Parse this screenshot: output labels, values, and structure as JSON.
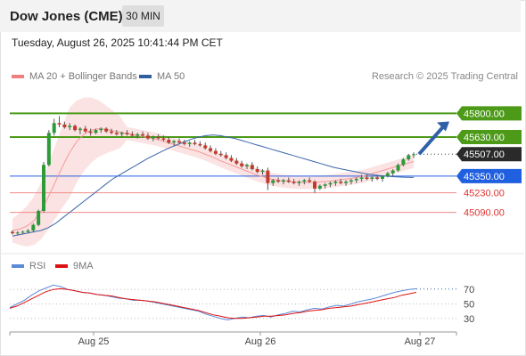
{
  "header": {
    "title": "Dow Jones (CME)",
    "timeframe": "30 MIN"
  },
  "timestamp": "Tuesday, August 26, 2025 10:41:44 PM CET",
  "legend": {
    "ma20": {
      "label": "MA 20 + Bollinger Bands",
      "color": "#f08080"
    },
    "ma50": {
      "label": "MA 50",
      "color": "#2f5f9f"
    }
  },
  "credit": "Research © 2025 Trading Central",
  "rsi_legend": {
    "rsi": {
      "label": "RSI",
      "color": "#5b8ad8"
    },
    "ma9": {
      "label": "9MA",
      "color": "#dd1111"
    }
  },
  "chart_data": [
    {
      "type": "candlestick",
      "x_tick_labels": [
        "Aug 25",
        "Aug 26",
        "Aug 27"
      ],
      "ylim": [
        44800,
        46000
      ],
      "levels": [
        {
          "label": "45800.00",
          "value": 45800,
          "kind": "resistance",
          "color": "#4c9a18"
        },
        {
          "label": "45630.00",
          "value": 45630,
          "kind": "resistance",
          "color": "#4c9a18"
        },
        {
          "label": "45507.00",
          "value": 45507,
          "kind": "last-price",
          "color": "#333333"
        },
        {
          "label": "45350.00",
          "value": 45350,
          "kind": "pivot",
          "color": "#1f5fe0"
        },
        {
          "label": "45230.00",
          "value": 45230,
          "kind": "support",
          "color": "#e03030"
        },
        {
          "label": "45090.00",
          "value": 45090,
          "kind": "support",
          "color": "#e03030"
        }
      ],
      "candles": [
        {
          "o": 44950,
          "h": 44960,
          "l": 44930,
          "c": 44940
        },
        {
          "o": 44940,
          "h": 44955,
          "l": 44925,
          "c": 44945
        },
        {
          "o": 44945,
          "h": 44960,
          "l": 44935,
          "c": 44950
        },
        {
          "o": 44950,
          "h": 44970,
          "l": 44940,
          "c": 44960
        },
        {
          "o": 44960,
          "h": 45010,
          "l": 44950,
          "c": 45000
        },
        {
          "o": 45000,
          "h": 45110,
          "l": 44990,
          "c": 45100
        },
        {
          "o": 45100,
          "h": 45450,
          "l": 45090,
          "c": 45430
        },
        {
          "o": 45430,
          "h": 45680,
          "l": 45420,
          "c": 45660
        },
        {
          "o": 45660,
          "h": 45760,
          "l": 45640,
          "c": 45730
        },
        {
          "o": 45730,
          "h": 45780,
          "l": 45700,
          "c": 45720
        },
        {
          "o": 45720,
          "h": 45740,
          "l": 45690,
          "c": 45700
        },
        {
          "o": 45700,
          "h": 45730,
          "l": 45680,
          "c": 45710
        },
        {
          "o": 45710,
          "h": 45720,
          "l": 45670,
          "c": 45680
        },
        {
          "o": 45680,
          "h": 45700,
          "l": 45650,
          "c": 45690
        },
        {
          "o": 45690,
          "h": 45710,
          "l": 45660,
          "c": 45670
        },
        {
          "o": 45670,
          "h": 45690,
          "l": 45640,
          "c": 45660
        },
        {
          "o": 45660,
          "h": 45690,
          "l": 45650,
          "c": 45680
        },
        {
          "o": 45680,
          "h": 45700,
          "l": 45660,
          "c": 45690
        },
        {
          "o": 45690,
          "h": 45700,
          "l": 45660,
          "c": 45670
        },
        {
          "o": 45670,
          "h": 45690,
          "l": 45650,
          "c": 45660
        },
        {
          "o": 45660,
          "h": 45680,
          "l": 45640,
          "c": 45650
        },
        {
          "o": 45650,
          "h": 45670,
          "l": 45630,
          "c": 45660
        },
        {
          "o": 45660,
          "h": 45680,
          "l": 45640,
          "c": 45650
        },
        {
          "o": 45650,
          "h": 45670,
          "l": 45630,
          "c": 45640
        },
        {
          "o": 45640,
          "h": 45660,
          "l": 45620,
          "c": 45650
        },
        {
          "o": 45650,
          "h": 45670,
          "l": 45630,
          "c": 45640
        },
        {
          "o": 45640,
          "h": 45660,
          "l": 45610,
          "c": 45620
        },
        {
          "o": 45620,
          "h": 45640,
          "l": 45600,
          "c": 45630
        },
        {
          "o": 45630,
          "h": 45650,
          "l": 45610,
          "c": 45620
        },
        {
          "o": 45620,
          "h": 45640,
          "l": 45600,
          "c": 45610
        },
        {
          "o": 45610,
          "h": 45630,
          "l": 45580,
          "c": 45590
        },
        {
          "o": 45590,
          "h": 45610,
          "l": 45570,
          "c": 45600
        },
        {
          "o": 45600,
          "h": 45620,
          "l": 45580,
          "c": 45590
        },
        {
          "o": 45590,
          "h": 45610,
          "l": 45570,
          "c": 45580
        },
        {
          "o": 45580,
          "h": 45600,
          "l": 45560,
          "c": 45590
        },
        {
          "o": 45590,
          "h": 45610,
          "l": 45570,
          "c": 45580
        },
        {
          "o": 45580,
          "h": 45600,
          "l": 45560,
          "c": 45570
        },
        {
          "o": 45570,
          "h": 45590,
          "l": 45540,
          "c": 45550
        },
        {
          "o": 45550,
          "h": 45570,
          "l": 45520,
          "c": 45530
        },
        {
          "o": 45530,
          "h": 45550,
          "l": 45500,
          "c": 45510
        },
        {
          "o": 45510,
          "h": 45530,
          "l": 45490,
          "c": 45500
        },
        {
          "o": 45500,
          "h": 45520,
          "l": 45470,
          "c": 45480
        },
        {
          "o": 45480,
          "h": 45500,
          "l": 45450,
          "c": 45460
        },
        {
          "o": 45460,
          "h": 45480,
          "l": 45430,
          "c": 45440
        },
        {
          "o": 45440,
          "h": 45460,
          "l": 45410,
          "c": 45420
        },
        {
          "o": 45420,
          "h": 45440,
          "l": 45400,
          "c": 45430
        },
        {
          "o": 45430,
          "h": 45450,
          "l": 45390,
          "c": 45400
        },
        {
          "o": 45400,
          "h": 45420,
          "l": 45370,
          "c": 45380
        },
        {
          "o": 45380,
          "h": 45400,
          "l": 45360,
          "c": 45390
        },
        {
          "o": 45390,
          "h": 45410,
          "l": 45250,
          "c": 45300
        },
        {
          "o": 45300,
          "h": 45330,
          "l": 45280,
          "c": 45320
        },
        {
          "o": 45320,
          "h": 45340,
          "l": 45300,
          "c": 45310
        },
        {
          "o": 45310,
          "h": 45330,
          "l": 45290,
          "c": 45320
        },
        {
          "o": 45320,
          "h": 45340,
          "l": 45300,
          "c": 45310
        },
        {
          "o": 45310,
          "h": 45330,
          "l": 45290,
          "c": 45300
        },
        {
          "o": 45300,
          "h": 45320,
          "l": 45280,
          "c": 45310
        },
        {
          "o": 45310,
          "h": 45330,
          "l": 45290,
          "c": 45320
        },
        {
          "o": 45320,
          "h": 45340,
          "l": 45300,
          "c": 45310
        },
        {
          "o": 45310,
          "h": 45320,
          "l": 45230,
          "c": 45260
        },
        {
          "o": 45260,
          "h": 45290,
          "l": 45250,
          "c": 45280
        },
        {
          "o": 45280,
          "h": 45300,
          "l": 45260,
          "c": 45290
        },
        {
          "o": 45290,
          "h": 45310,
          "l": 45270,
          "c": 45300
        },
        {
          "o": 45300,
          "h": 45320,
          "l": 45280,
          "c": 45310
        },
        {
          "o": 45310,
          "h": 45330,
          "l": 45290,
          "c": 45300
        },
        {
          "o": 45300,
          "h": 45320,
          "l": 45280,
          "c": 45310
        },
        {
          "o": 45310,
          "h": 45330,
          "l": 45290,
          "c": 45320
        },
        {
          "o": 45320,
          "h": 45340,
          "l": 45300,
          "c": 45330
        },
        {
          "o": 45330,
          "h": 45360,
          "l": 45310,
          "c": 45340
        },
        {
          "o": 45340,
          "h": 45360,
          "l": 45320,
          "c": 45330
        },
        {
          "o": 45330,
          "h": 45350,
          "l": 45310,
          "c": 45340
        },
        {
          "o": 45340,
          "h": 45360,
          "l": 45320,
          "c": 45330
        },
        {
          "o": 45330,
          "h": 45350,
          "l": 45310,
          "c": 45350
        },
        {
          "o": 45350,
          "h": 45380,
          "l": 45340,
          "c": 45370
        },
        {
          "o": 45370,
          "h": 45400,
          "l": 45350,
          "c": 45390
        },
        {
          "o": 45390,
          "h": 45440,
          "l": 45380,
          "c": 45430
        },
        {
          "o": 45430,
          "h": 45480,
          "l": 45420,
          "c": 45470
        },
        {
          "o": 45470,
          "h": 45510,
          "l": 45460,
          "c": 45500
        },
        {
          "o": 45500,
          "h": 45520,
          "l": 45480,
          "c": 45507
        }
      ],
      "ma50": [
        44920,
        44930,
        44940,
        44950,
        44960,
        44980,
        45010,
        45050,
        45090,
        45130,
        45170,
        45210,
        45250,
        45290,
        45330,
        45360,
        45390,
        45420,
        45450,
        45480,
        45505,
        45530,
        45555,
        45575,
        45595,
        45615,
        45630,
        45640,
        45645,
        45640,
        45630,
        45620,
        45605,
        45590,
        45575,
        45560,
        45545,
        45530,
        45515,
        45500,
        45485,
        45470,
        45455,
        45440,
        45425,
        45410,
        45400,
        45390,
        45380,
        45370,
        45362,
        45355,
        45350,
        45346,
        45343,
        45341,
        45340
      ],
      "ma20": [
        44960,
        44970,
        44990,
        45030,
        45100,
        45200,
        45310,
        45420,
        45520,
        45600,
        45650,
        45680,
        45690,
        45685,
        45675,
        45665,
        45655,
        45645,
        45635,
        45625,
        45615,
        45600,
        45585,
        45570,
        45555,
        45540,
        45525,
        45505,
        45485,
        45460,
        45440,
        45420,
        45400,
        45380,
        45360,
        45345,
        45330,
        45320,
        45312,
        45308,
        45305,
        45304,
        45305,
        45308,
        45312,
        45318,
        45325,
        45332,
        45340,
        45350,
        45365,
        45380,
        45395,
        45410,
        45425,
        45440,
        45455
      ],
      "forecast_arrow": {
        "from": 45507,
        "to": 45780
      }
    },
    {
      "type": "line",
      "name": "RSI panel",
      "ylim": [
        15,
        85
      ],
      "y_tick_labels": [
        "70",
        "50",
        "30"
      ],
      "y_ticks": [
        70,
        50,
        30
      ],
      "series": [
        {
          "name": "RSI",
          "values": [
            45,
            50,
            55,
            62,
            68,
            72,
            76,
            74,
            70,
            68,
            66,
            65,
            63,
            62,
            60,
            58,
            57,
            55,
            55,
            54,
            52,
            50,
            48,
            46,
            44,
            42,
            40,
            36,
            33,
            30,
            28,
            30,
            32,
            31,
            33,
            34,
            32,
            35,
            37,
            40,
            39,
            42,
            44,
            43,
            46,
            48,
            47,
            50,
            53,
            55,
            57,
            60,
            63,
            66,
            68,
            70,
            71
          ]
        },
        {
          "name": "9MA",
          "values": [
            44,
            47,
            52,
            57,
            62,
            67,
            70,
            71,
            70,
            68,
            66,
            65,
            63,
            62,
            61,
            59,
            57,
            56,
            55,
            54,
            53,
            51,
            49,
            47,
            45,
            43,
            41,
            38,
            35,
            33,
            31,
            30,
            30,
            31,
            32,
            33,
            33,
            34,
            35,
            37,
            38,
            40,
            41,
            42,
            44,
            45,
            46,
            47,
            49,
            51,
            53,
            55,
            57,
            59,
            62,
            64,
            66
          ]
        }
      ]
    }
  ]
}
